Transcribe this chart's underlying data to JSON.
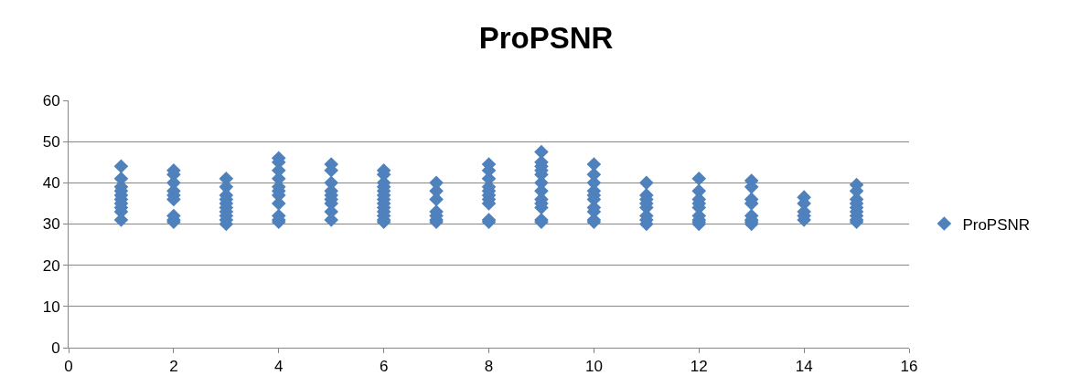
{
  "chart_data": {
    "type": "scatter",
    "title": "ProPSNR",
    "x": [
      1,
      1,
      1,
      1,
      1,
      1,
      1,
      1,
      1,
      1,
      2,
      2,
      2,
      2,
      2,
      2,
      2,
      2,
      2,
      3,
      3,
      3,
      3,
      3,
      3,
      3,
      3,
      3,
      3,
      4,
      4,
      4,
      4,
      4,
      4,
      4,
      4,
      4,
      4,
      4,
      5,
      5,
      5,
      5,
      5,
      5,
      5,
      5,
      5,
      6,
      6,
      6,
      6,
      6,
      6,
      6,
      6,
      6,
      6,
      6,
      6,
      6,
      7,
      7,
      7,
      7,
      7,
      7,
      7,
      8,
      8,
      8,
      8,
      8,
      8,
      8,
      8,
      8,
      8,
      9,
      9,
      9,
      9,
      9,
      9,
      9,
      9,
      9,
      9,
      9,
      9,
      10,
      10,
      10,
      10,
      10,
      10,
      10,
      10,
      10,
      10,
      11,
      11,
      11,
      11,
      11,
      11,
      11,
      11,
      12,
      12,
      12,
      12,
      12,
      12,
      12,
      12,
      12,
      13,
      13,
      13,
      13,
      13,
      13,
      13,
      13,
      14,
      14,
      14,
      14,
      14,
      15,
      15,
      15,
      15,
      15,
      15,
      15,
      15,
      15
    ],
    "series": [
      {
        "name": "ProPSNR",
        "color": "#4f81bd",
        "values": [
          44,
          41,
          39,
          38,
          37,
          36,
          35,
          34,
          33,
          31,
          43,
          42,
          40,
          38,
          37,
          36,
          32,
          31,
          30.5,
          41,
          39,
          37,
          36,
          35,
          34,
          33,
          32,
          31,
          30,
          46,
          45,
          43,
          41,
          39,
          38,
          37,
          35,
          32,
          31,
          30.5,
          44.5,
          43,
          40,
          38,
          37,
          36,
          35,
          33,
          31,
          43,
          42,
          40,
          39,
          38,
          37,
          36,
          35,
          34,
          33,
          32,
          31,
          30.5,
          40,
          38,
          36,
          33,
          32,
          31,
          30.5,
          44.5,
          43,
          41,
          39,
          38,
          37,
          36,
          35,
          31,
          30.5,
          47.5,
          45,
          44,
          43,
          42,
          40,
          38,
          36,
          35,
          34,
          31,
          30.5,
          44.5,
          42,
          40,
          38,
          37,
          36,
          34,
          33,
          31,
          30.5,
          40,
          37,
          36,
          35,
          34,
          32,
          31,
          30,
          41,
          38,
          36,
          35,
          34,
          32,
          31,
          30.5,
          30,
          40.5,
          39,
          36,
          35,
          32,
          31,
          30.5,
          30,
          36.5,
          35,
          33,
          32,
          31,
          39.5,
          38,
          36,
          35,
          34,
          33,
          32,
          31,
          30.5
        ]
      }
    ],
    "xlim": [
      0,
      16
    ],
    "xticks": [
      0,
      2,
      4,
      6,
      8,
      10,
      12,
      14,
      16
    ],
    "ylim": [
      0,
      60
    ],
    "yticks": [
      0,
      10,
      20,
      30,
      40,
      50,
      60
    ],
    "grid": "y",
    "legend": "right",
    "marker": "diamond"
  }
}
